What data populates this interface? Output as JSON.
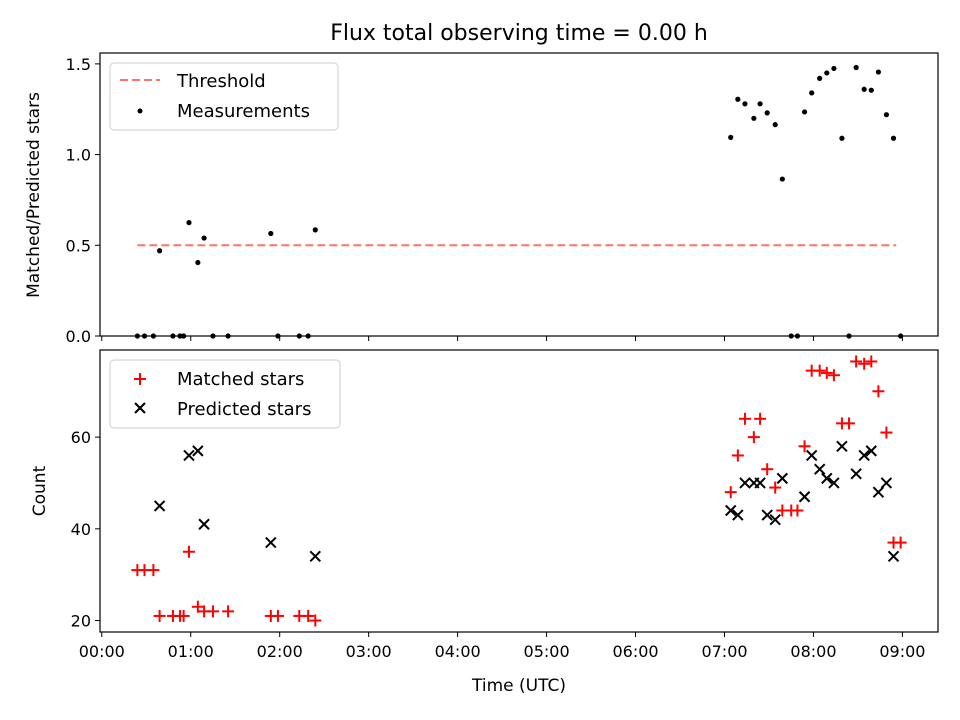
{
  "figure": {
    "title": "Flux total observing time = 0.00 h"
  },
  "chart_data": [
    {
      "type": "scatter",
      "panel": "top",
      "ylabel": "Matched/Predicted stars",
      "xlabel": "",
      "xlim_hours": [
        -0.02,
        9.4
      ],
      "ylim": [
        0,
        1.56
      ],
      "yticks": [
        "0.0",
        "0.5",
        "1.0",
        "1.5"
      ],
      "yticks_values": [
        0,
        0.5,
        1.0,
        1.5
      ],
      "grid": false,
      "legend_position": "top-left",
      "threshold": {
        "name": "Threshold",
        "value": 0.5,
        "x_from": 0.4,
        "x_to": 8.93,
        "color": "#ff7070",
        "style": "dashed"
      },
      "series": [
        {
          "name": "Measurements",
          "marker": "dot",
          "color": "#000000",
          "points": [
            [
              0.4,
              0.0
            ],
            [
              0.48,
              0.0
            ],
            [
              0.58,
              0.0
            ],
            [
              0.65,
              0.47
            ],
            [
              0.8,
              0.0
            ],
            [
              0.88,
              0.0
            ],
            [
              0.92,
              0.0
            ],
            [
              0.98,
              0.625
            ],
            [
              1.08,
              0.405
            ],
            [
              1.15,
              0.54
            ],
            [
              1.25,
              0.0
            ],
            [
              1.42,
              0.0
            ],
            [
              1.9,
              0.565
            ],
            [
              1.98,
              0.0
            ],
            [
              2.22,
              0.0
            ],
            [
              2.32,
              0.0
            ],
            [
              2.4,
              0.585
            ],
            [
              7.07,
              1.095
            ],
            [
              7.15,
              1.305
            ],
            [
              7.23,
              1.28
            ],
            [
              7.33,
              1.2
            ],
            [
              7.4,
              1.28
            ],
            [
              7.48,
              1.23
            ],
            [
              7.57,
              1.165
            ],
            [
              7.65,
              0.865
            ],
            [
              7.75,
              0.0
            ],
            [
              7.82,
              0.0
            ],
            [
              7.9,
              1.235
            ],
            [
              7.98,
              1.34
            ],
            [
              8.07,
              1.42
            ],
            [
              8.15,
              1.45
            ],
            [
              8.23,
              1.475
            ],
            [
              8.32,
              1.09
            ],
            [
              8.4,
              0.0
            ],
            [
              8.48,
              1.48
            ],
            [
              8.57,
              1.36
            ],
            [
              8.65,
              1.355
            ],
            [
              8.73,
              1.455
            ],
            [
              8.82,
              1.22
            ],
            [
              8.9,
              1.09
            ],
            [
              8.98,
              0.0
            ]
          ]
        }
      ]
    },
    {
      "type": "scatter",
      "panel": "bottom",
      "ylabel": "Count",
      "xlabel": "Time (UTC)",
      "xlim_hours": [
        -0.02,
        9.4
      ],
      "ylim": [
        17.5,
        79
      ],
      "yticks": [
        "20",
        "40",
        "60"
      ],
      "yticks_values": [
        20,
        40,
        60
      ],
      "xticks": [
        "00:00",
        "01:00",
        "02:00",
        "03:00",
        "04:00",
        "05:00",
        "06:00",
        "07:00",
        "08:00",
        "09:00"
      ],
      "xticks_values": [
        0,
        1,
        2,
        3,
        4,
        5,
        6,
        7,
        8,
        9
      ],
      "grid": false,
      "legend_position": "top-left",
      "series": [
        {
          "name": "Matched stars",
          "marker": "plus",
          "color": "#ff0000",
          "points": [
            [
              0.4,
              31
            ],
            [
              0.48,
              31
            ],
            [
              0.58,
              31
            ],
            [
              0.65,
              21
            ],
            [
              0.8,
              21
            ],
            [
              0.88,
              21
            ],
            [
              0.92,
              21
            ],
            [
              0.98,
              35
            ],
            [
              1.08,
              23
            ],
            [
              1.15,
              22
            ],
            [
              1.25,
              22
            ],
            [
              1.42,
              22
            ],
            [
              1.9,
              21
            ],
            [
              1.98,
              21
            ],
            [
              2.22,
              21
            ],
            [
              2.32,
              21
            ],
            [
              2.4,
              20
            ],
            [
              7.07,
              48
            ],
            [
              7.15,
              56
            ],
            [
              7.23,
              64
            ],
            [
              7.33,
              60
            ],
            [
              7.4,
              64
            ],
            [
              7.48,
              53
            ],
            [
              7.57,
              49
            ],
            [
              7.65,
              44
            ],
            [
              7.75,
              44
            ],
            [
              7.82,
              44
            ],
            [
              7.9,
              58
            ],
            [
              7.98,
              74.5
            ],
            [
              8.07,
              74.5
            ],
            [
              8.15,
              74
            ],
            [
              8.23,
              73.5
            ],
            [
              8.32,
              63
            ],
            [
              8.4,
              63
            ],
            [
              8.48,
              76.5
            ],
            [
              8.57,
              76
            ],
            [
              8.65,
              76.5
            ],
            [
              8.73,
              70
            ],
            [
              8.82,
              61
            ],
            [
              8.9,
              37
            ],
            [
              8.98,
              37
            ]
          ]
        },
        {
          "name": "Predicted stars",
          "marker": "x",
          "color": "#000000",
          "points": [
            [
              0.65,
              45
            ],
            [
              0.98,
              56
            ],
            [
              1.08,
              57
            ],
            [
              1.15,
              41
            ],
            [
              1.9,
              37
            ],
            [
              2.4,
              34
            ],
            [
              7.07,
              44
            ],
            [
              7.15,
              43
            ],
            [
              7.23,
              50
            ],
            [
              7.33,
              50
            ],
            [
              7.4,
              50
            ],
            [
              7.48,
              43
            ],
            [
              7.57,
              42
            ],
            [
              7.65,
              51
            ],
            [
              7.9,
              47
            ],
            [
              7.98,
              56
            ],
            [
              8.07,
              53
            ],
            [
              8.15,
              51
            ],
            [
              8.23,
              50
            ],
            [
              8.32,
              58
            ],
            [
              8.48,
              52
            ],
            [
              8.57,
              56
            ],
            [
              8.65,
              57
            ],
            [
              8.73,
              48
            ],
            [
              8.82,
              50
            ],
            [
              8.9,
              34
            ]
          ]
        }
      ]
    }
  ]
}
